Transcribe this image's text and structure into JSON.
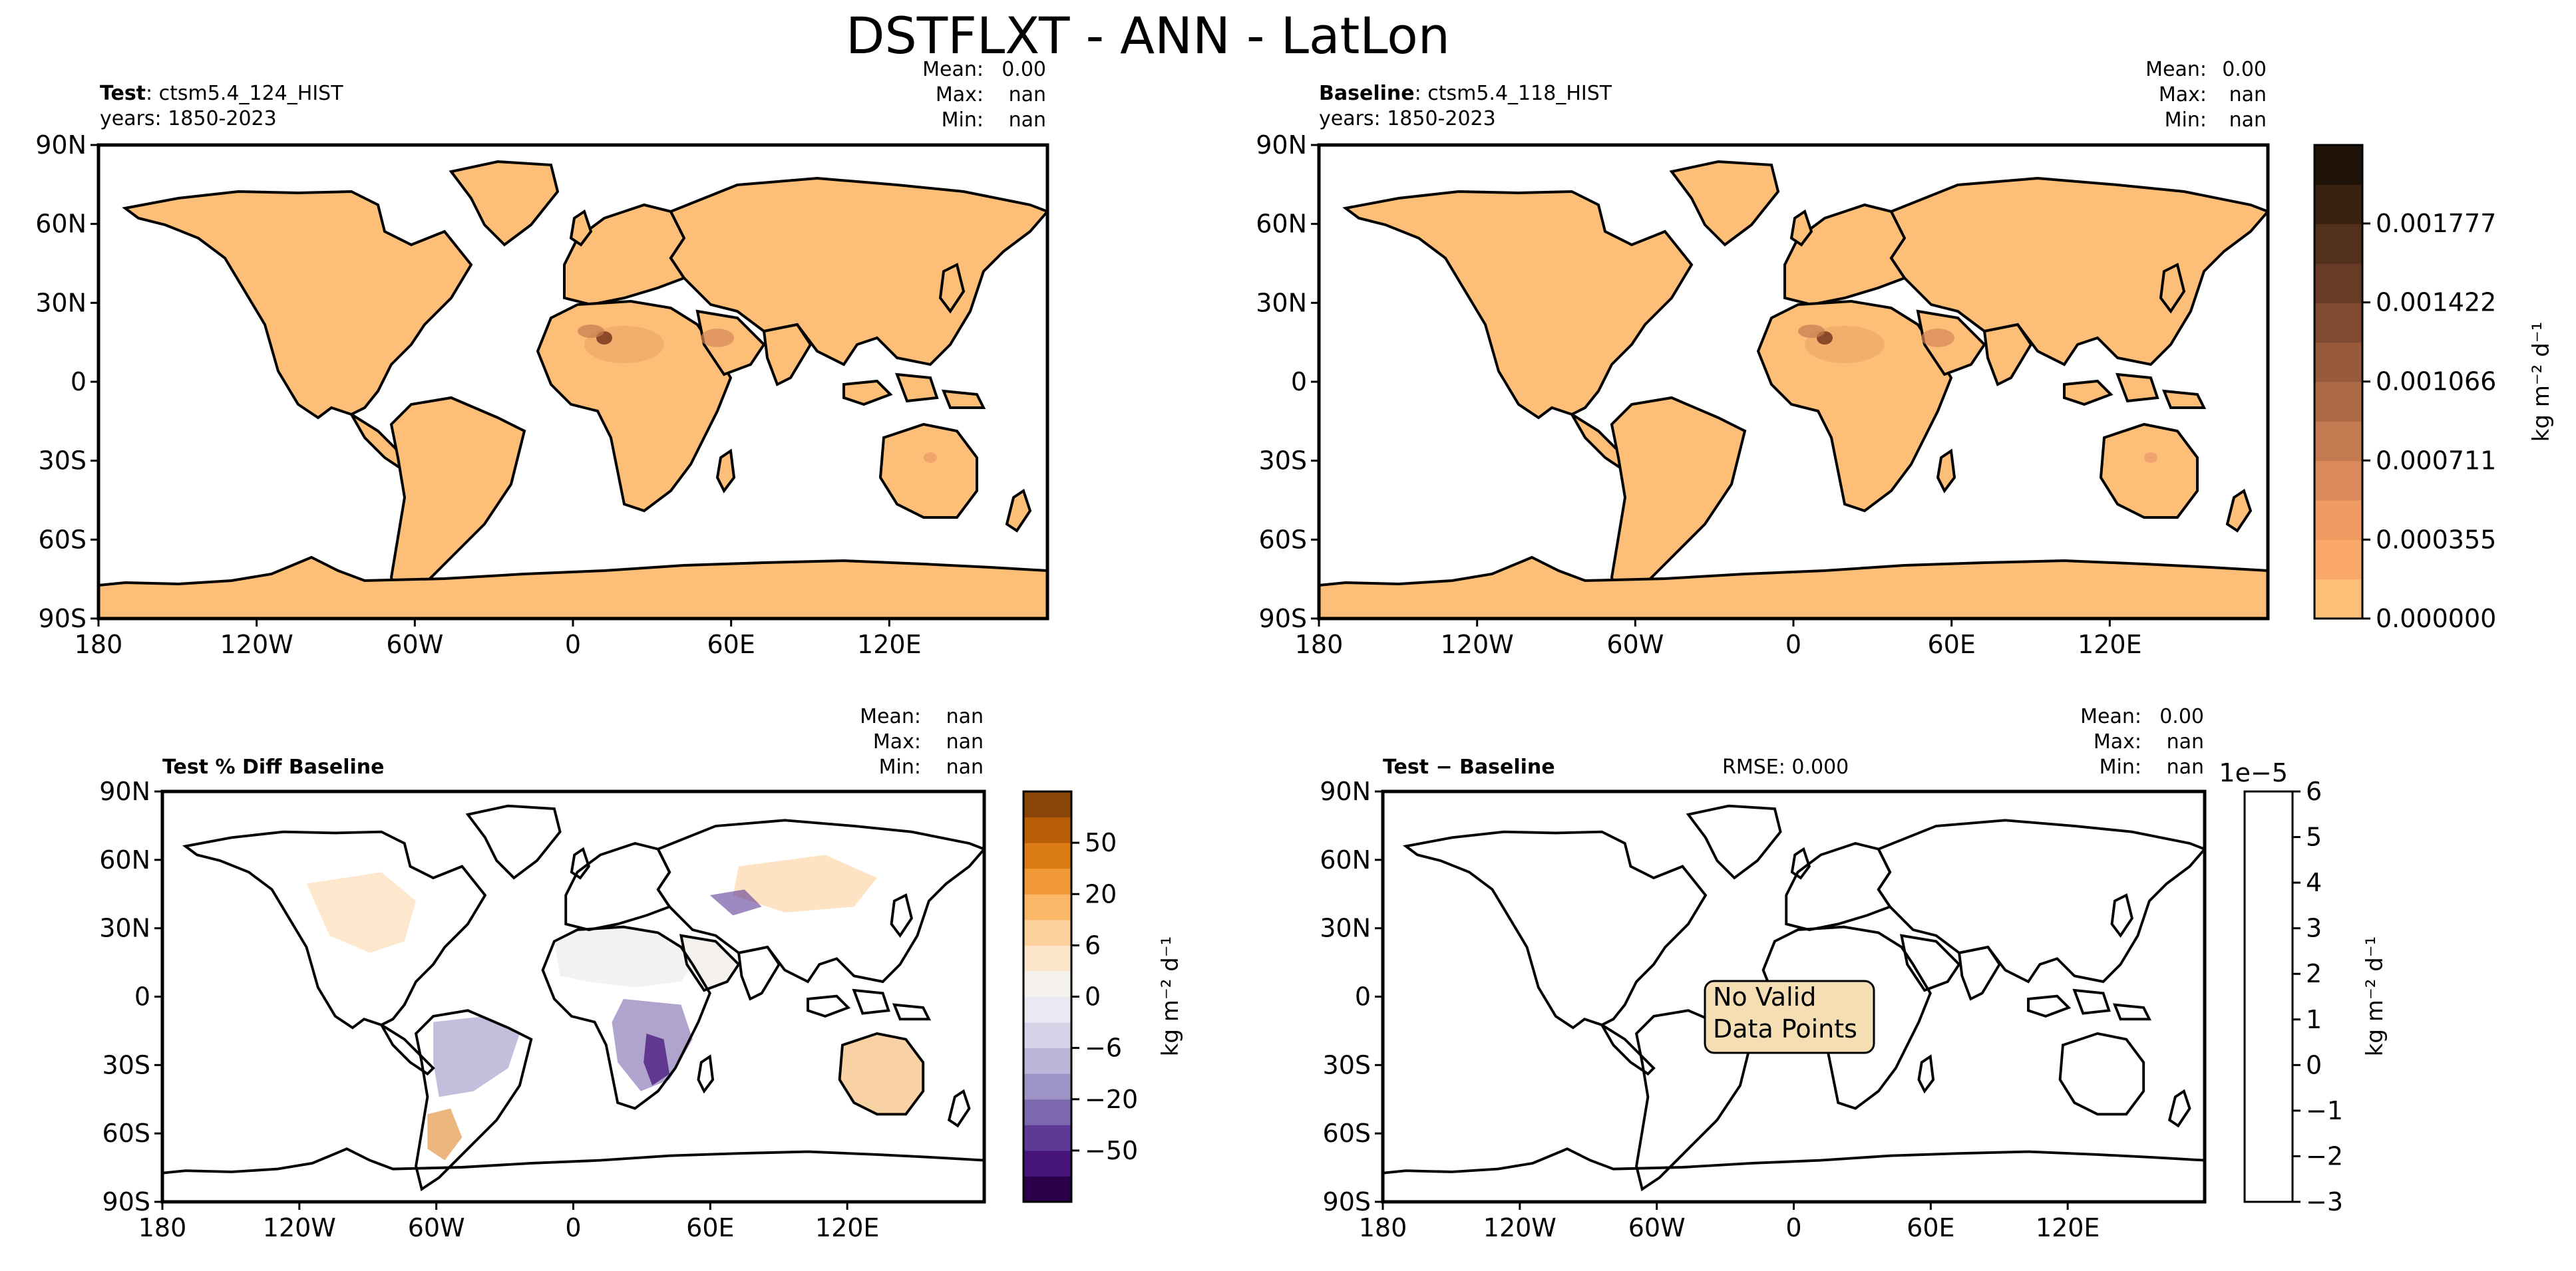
{
  "figure": {
    "title": "DSTFLXT - ANN - LatLon"
  },
  "axis_labels": {
    "lat": [
      "90N",
      "60N",
      "30N",
      "0",
      "30S",
      "60S",
      "90S"
    ],
    "lon": [
      "180",
      "120W",
      "60W",
      "0",
      "60E",
      "120E"
    ]
  },
  "panels": {
    "test": {
      "bold": "Test",
      "name": ": ctsm5.4_124_HIST",
      "years": "years: 1850-2023",
      "stats": {
        "mean_label": "Mean:",
        "mean": "0.00",
        "max_label": "Max:",
        "max": "nan",
        "min_label": "Min:",
        "min": "nan"
      }
    },
    "baseline": {
      "bold": "Baseline",
      "name": ": ctsm5.4_118_HIST",
      "years": "years: 1850-2023",
      "stats": {
        "mean_label": "Mean:",
        "mean": "0.00",
        "max_label": "Max:",
        "max": "nan",
        "min_label": "Min:",
        "min": "nan"
      }
    },
    "pctdiff": {
      "bold": "Test % Diff Baseline",
      "stats": {
        "mean_label": "Mean:",
        "mean": "nan",
        "max_label": "Max:",
        "max": "nan",
        "min_label": "Min:",
        "min": "nan"
      }
    },
    "diff": {
      "bold": "Test − Baseline",
      "rmse": "RMSE: 0.000",
      "no_data": [
        "No Valid",
        "Data Points"
      ],
      "stats": {
        "mean_label": "Mean:",
        "mean": "0.00",
        "max_label": "Max:",
        "max": "nan",
        "min_label": "Min:",
        "min": "nan"
      }
    }
  },
  "colorbars": {
    "main": {
      "label": "kg m⁻² d⁻¹",
      "ticks": [
        "0.001777",
        "0.001422",
        "0.001066",
        "0.000711",
        "0.000355",
        "0.000000"
      ],
      "colors": [
        "#fdbe78",
        "#f9a86a",
        "#ef9b62",
        "#d9895a",
        "#c47a50",
        "#ad6a45",
        "#975a3a",
        "#7e4a30",
        "#673b25",
        "#52301c",
        "#3a2112",
        "#1f1207"
      ]
    },
    "pctdiff": {
      "label": "kg m⁻² d⁻¹",
      "ticks": [
        "50",
        "20",
        "6",
        "0",
        "−6",
        "−20",
        "−50"
      ],
      "colors": [
        "#2d004b",
        "#47147a",
        "#5e3a96",
        "#7c68ad",
        "#9d93c4",
        "#bcb6d9",
        "#d6d3e8",
        "#eae8f2",
        "#f4f1ec",
        "#fce4c8",
        "#fdd19c",
        "#fbb768",
        "#f09936",
        "#dc7c14",
        "#b85f08",
        "#8a4508"
      ]
    },
    "diff": {
      "label": "kg m⁻² d⁻¹",
      "exponent": "1e−5",
      "ticks": [
        "6",
        "5",
        "4",
        "3",
        "2",
        "1",
        "0",
        "−1",
        "−2",
        "−3"
      ]
    }
  },
  "chart_data": [
    {
      "type": "heatmap",
      "title": "DSTFLXT - ANN - LatLon",
      "panel": "Test: ctsm5.4_124_HIST",
      "projection": "PlateCarree",
      "xlabel": "",
      "ylabel": "",
      "xlim": [
        -180,
        180
      ],
      "ylim": [
        -90,
        90
      ],
      "colorbar": {
        "label": "kg m-2 d-1",
        "range": [
          0.0,
          0.00213
        ],
        "ticks": [
          0.0,
          0.000355,
          0.000711,
          0.001066,
          0.001422,
          0.001777
        ]
      },
      "stats": {
        "mean": "0.00",
        "max": "nan",
        "min": "nan"
      }
    },
    {
      "type": "heatmap",
      "panel": "Baseline: ctsm5.4_118_HIST",
      "projection": "PlateCarree",
      "xlim": [
        -180,
        180
      ],
      "ylim": [
        -90,
        90
      ],
      "colorbar": {
        "label": "kg m-2 d-1",
        "range": [
          0.0,
          0.00213
        ],
        "ticks": [
          0.0,
          0.000355,
          0.000711,
          0.001066,
          0.001422,
          0.001777
        ]
      },
      "stats": {
        "mean": "0.00",
        "max": "nan",
        "min": "nan"
      }
    },
    {
      "type": "heatmap",
      "panel": "Test % Diff Baseline",
      "projection": "PlateCarree",
      "xlim": [
        -180,
        180
      ],
      "ylim": [
        -90,
        90
      ],
      "colorbar": {
        "label": "kg m-2 d-1",
        "ticks": [
          -50,
          -20,
          -6,
          0,
          6,
          20,
          50
        ]
      },
      "stats": {
        "mean": "nan",
        "max": "nan",
        "min": "nan"
      }
    },
    {
      "type": "heatmap",
      "panel": "Test - Baseline",
      "projection": "PlateCarree",
      "xlim": [
        -180,
        180
      ],
      "ylim": [
        -90,
        90
      ],
      "colorbar": {
        "label": "kg m-2 d-1",
        "scale": "1e-5",
        "range": [
          -3,
          6
        ],
        "ticks": [
          -3,
          -2,
          -1,
          0,
          1,
          2,
          3,
          4,
          5,
          6
        ]
      },
      "annotation": "No Valid Data Points",
      "rmse": "0.000",
      "stats": {
        "mean": "0.00",
        "max": "nan",
        "min": "nan"
      }
    }
  ]
}
